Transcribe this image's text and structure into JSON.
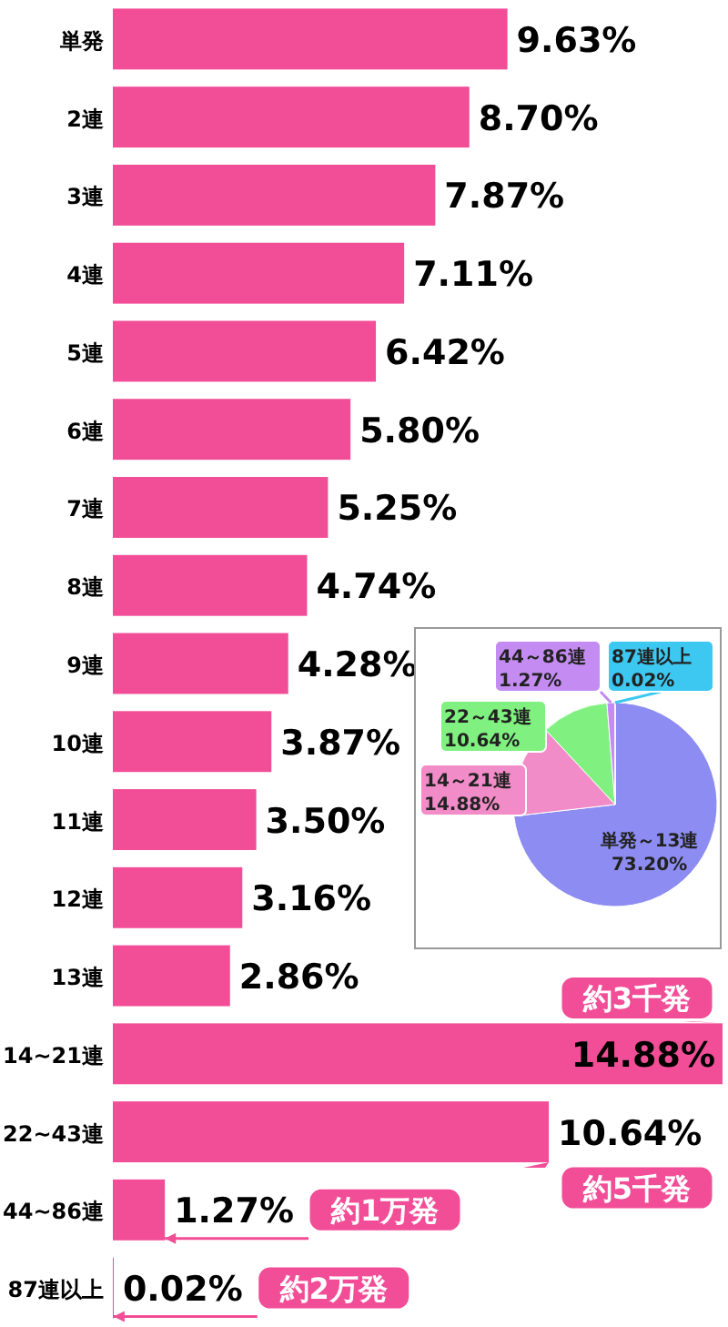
{
  "chart_data": [
    {
      "type": "bar",
      "orientation": "horizontal",
      "categories": [
        "単発",
        "2連",
        "3連",
        "4連",
        "5連",
        "6連",
        "7連",
        "8連",
        "9連",
        "10連",
        "11連",
        "12連",
        "13連",
        "14~21連",
        "22~43連",
        "44~86連",
        "87連以上"
      ],
      "values": [
        9.63,
        8.7,
        7.87,
        7.11,
        6.42,
        5.8,
        5.25,
        4.74,
        4.28,
        3.87,
        3.5,
        3.16,
        2.86,
        14.88,
        10.64,
        1.27,
        0.02
      ],
      "color": "#f24d97",
      "value_labels": [
        "9.63%",
        "8.70%",
        "7.87%",
        "7.11%",
        "6.42%",
        "5.80%",
        "5.25%",
        "4.74%",
        "4.28%",
        "3.87%",
        "3.50%",
        "3.16%",
        "2.86%",
        "14.88%",
        "10.64%",
        "1.27%",
        "0.02%"
      ],
      "annotations": [
        {
          "text": "約3千発",
          "x": 14.88,
          "y": "14~21連"
        },
        {
          "text": "約5千発",
          "x": 10.64,
          "y": "22~43連"
        },
        {
          "text": "約1万発",
          "x": 1.27,
          "y": "44~86連"
        },
        {
          "text": "約2万発",
          "x": 0.02,
          "y": "87連以上"
        }
      ]
    },
    {
      "type": "pie",
      "categories": [
        "単発～13連",
        "14～21連",
        "22～43連",
        "44～86連",
        "87連以上"
      ],
      "values": [
        73.2,
        14.88,
        10.64,
        1.27,
        0.02
      ],
      "colors": [
        "#8c8cf2",
        "#f28cc8",
        "#80f080",
        "#c48cf2",
        "#3cc8f0"
      ],
      "value_labels": [
        "73.20%",
        "14.88%",
        "10.64%",
        "1.27%",
        "0.02%"
      ]
    }
  ]
}
